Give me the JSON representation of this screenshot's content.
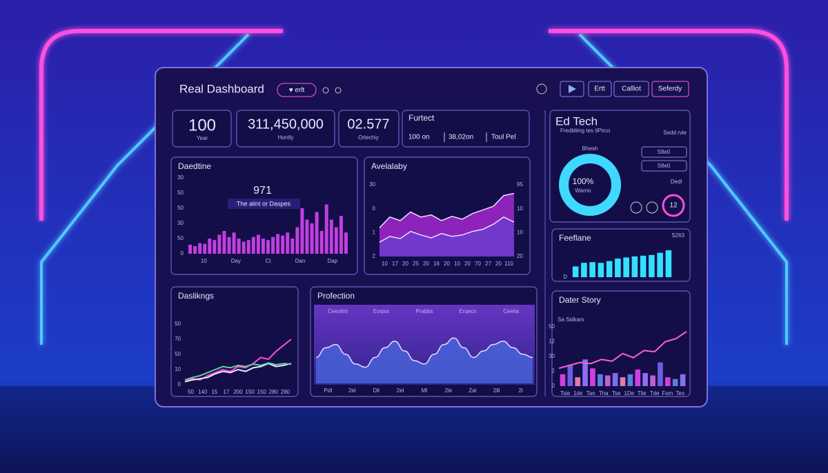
{
  "header": {
    "title": "Real Dashboard",
    "tag": "♥ erlt",
    "buttons": [
      "Ertt",
      "Calliot",
      "Seferdy"
    ]
  },
  "kpis": [
    {
      "value": "100",
      "label": "Year"
    },
    {
      "value": "311,450,000",
      "label": "Hontly"
    },
    {
      "value": "02.577",
      "label": "Ortechiy"
    }
  ],
  "summary": {
    "title": "Furtect",
    "items": [
      "100 on",
      "38,02on",
      "Toul Pel"
    ]
  },
  "edtech": {
    "title": "Ed Tech",
    "subtitle": "Fredbliing tes tlPirco",
    "note": "Sedd rvle",
    "label": "Bhesh",
    "donut": {
      "value": 100,
      "value_label": "100%",
      "caption": "Warno",
      "color": "#3fd8ff"
    },
    "stats": [
      "S8e0",
      "S8e0"
    ],
    "small": "Dedl",
    "badge": "12"
  },
  "charts": [
    {
      "type": "bar",
      "title": "Daedtine",
      "annotation": {
        "value": "971",
        "text": "The alint or Daspes"
      },
      "ylim": [
        0,
        100
      ],
      "y_labels": [
        "30",
        "50",
        "50",
        "30",
        "50",
        "0"
      ],
      "x_labels": [
        "10",
        "Day",
        "Ct",
        "Dan",
        "Dap"
      ],
      "series": [
        {
          "type": "bar",
          "color": "#c23fe0",
          "values": [
            12,
            10,
            14,
            13,
            20,
            18,
            25,
            30,
            22,
            28,
            20,
            16,
            18,
            22,
            25,
            20,
            18,
            22,
            26,
            24,
            28,
            20,
            35,
            60,
            45,
            40,
            55,
            30,
            65,
            45,
            35,
            50,
            28
          ]
        }
      ]
    },
    {
      "type": "area",
      "title": "Avelalaby",
      "ylim": [
        0,
        100
      ],
      "y_labels": [
        "30",
        "0",
        "1",
        "2"
      ],
      "y_labels_right": [
        "95",
        "10",
        "10",
        "20"
      ],
      "x_labels": [
        "10",
        "17",
        "20",
        "25",
        "20",
        "16",
        "20",
        "10",
        "20",
        "70",
        "27",
        "20",
        "110"
      ],
      "series": [
        {
          "type": "area",
          "color": "#b52be0",
          "values": [
            40,
            55,
            50,
            62,
            55,
            58,
            50,
            56,
            52,
            60,
            65,
            70,
            85,
            88
          ]
        },
        {
          "type": "area",
          "color": "#6a3fd0",
          "values": [
            20,
            28,
            25,
            35,
            30,
            26,
            32,
            28,
            30,
            35,
            38,
            45,
            55,
            48
          ]
        }
      ]
    },
    {
      "type": "bar",
      "title": "Feeflane",
      "corner_label": "S263",
      "ylim": [
        0,
        100
      ],
      "y_labels": [
        "D"
      ],
      "series": [
        {
          "type": "bar",
          "color": "#33e0ff",
          "values": [
            30,
            40,
            42,
            40,
            45,
            52,
            55,
            58,
            60,
            62,
            68,
            75
          ]
        }
      ]
    },
    {
      "type": "line",
      "title": "Daslikngs",
      "ylim": [
        0,
        100
      ],
      "y_labels": [
        "50",
        "70",
        "50",
        "10",
        "0"
      ],
      "x_labels": [
        "50",
        "140",
        "15",
        "17",
        "200",
        "150",
        "150",
        "280",
        "280"
      ],
      "series": [
        {
          "type": "line",
          "color": "#ff4fd8",
          "values": [
            5,
            10,
            8,
            15,
            20,
            25,
            22,
            30,
            28,
            35,
            45,
            42,
            55,
            65,
            75
          ]
        },
        {
          "type": "line",
          "color": "#e8e8ff",
          "values": [
            5,
            8,
            10,
            12,
            18,
            22,
            20,
            25,
            22,
            28,
            30,
            35,
            30,
            32,
            35
          ]
        },
        {
          "type": "line",
          "color": "#5fd39a",
          "values": [
            8,
            12,
            15,
            20,
            25,
            30,
            28,
            32,
            30,
            34,
            32,
            36,
            33,
            35,
            34
          ]
        }
      ]
    },
    {
      "type": "area",
      "title": "Profection",
      "ylim": [
        0,
        100
      ],
      "columns": [
        "Ceeslinl",
        "Eoqsa",
        "Prabbs",
        "Erqecs",
        "Ceelia"
      ],
      "x_labels": [
        "PdI",
        "2el",
        "Dll",
        "2el",
        "Ml",
        "2le",
        "Zal",
        "2lll",
        "2l"
      ],
      "series": [
        {
          "type": "area",
          "color": "#4a6ae0",
          "smooth": true,
          "values": [
            40,
            55,
            60,
            45,
            30,
            25,
            40,
            55,
            65,
            50,
            35,
            30,
            45,
            60,
            70,
            55,
            40,
            50,
            60,
            65,
            55,
            45,
            40
          ]
        }
      ]
    },
    {
      "type": "combo",
      "title": "Dater Story",
      "sublabel": "Sa Sidkars",
      "ylim": [
        0,
        100
      ],
      "y_labels": [
        "50",
        "12",
        "30",
        "2",
        "0"
      ],
      "x_labels": [
        "Tsie",
        "1de",
        "Tan",
        "Tha",
        "Tse",
        "1De",
        "Tlie",
        "Tde",
        "Fom",
        "Tes"
      ],
      "series": [
        {
          "type": "bar",
          "colors": [
            "#d03fe0",
            "#6a5fe0",
            "#e07ab0",
            "#8a6ff0",
            "#d03fe0",
            "#5a7fe0",
            "#c05fd0",
            "#7a6ff0",
            "#e07ab0",
            "#5a7fe0",
            "#d03fe0",
            "#8a6ff0",
            "#c05fd0",
            "#6a5fe0",
            "#d03fe0",
            "#5a7fe0",
            "#8a6ff0"
          ],
          "values": [
            20,
            35,
            15,
            45,
            30,
            20,
            18,
            22,
            15,
            20,
            28,
            22,
            18,
            40,
            15,
            12,
            20
          ]
        },
        {
          "type": "line",
          "color": "#ff5fd0",
          "values": [
            30,
            35,
            40,
            38,
            45,
            42,
            55,
            48,
            60,
            58,
            75,
            80,
            92
          ]
        }
      ]
    }
  ]
}
